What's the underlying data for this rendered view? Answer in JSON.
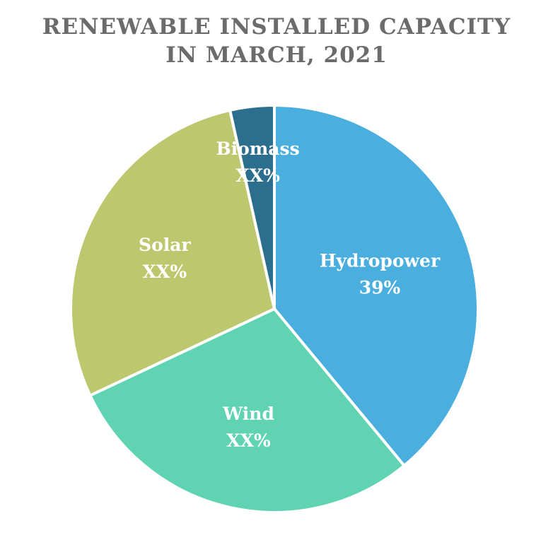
{
  "chart_data": {
    "type": "pie",
    "title_lines": [
      "RENEWABLE INSTALLED CAPACITY",
      "IN MARCH, 2021"
    ],
    "slices": [
      {
        "name": "Hydropower",
        "label": "39%",
        "value": 39,
        "color": "#4aaedf"
      },
      {
        "name": "Wind",
        "label": "XX%",
        "value": 29,
        "color": "#5fd3b2"
      },
      {
        "name": "Solar",
        "label": "XX%",
        "value": 28.5,
        "color": "#bdc86e"
      },
      {
        "name": "Biomass",
        "label": "XX%",
        "value": 3.5,
        "color": "#2c6e8e"
      }
    ],
    "start_angle_deg": 0,
    "direction": "clockwise",
    "legend": "none"
  }
}
